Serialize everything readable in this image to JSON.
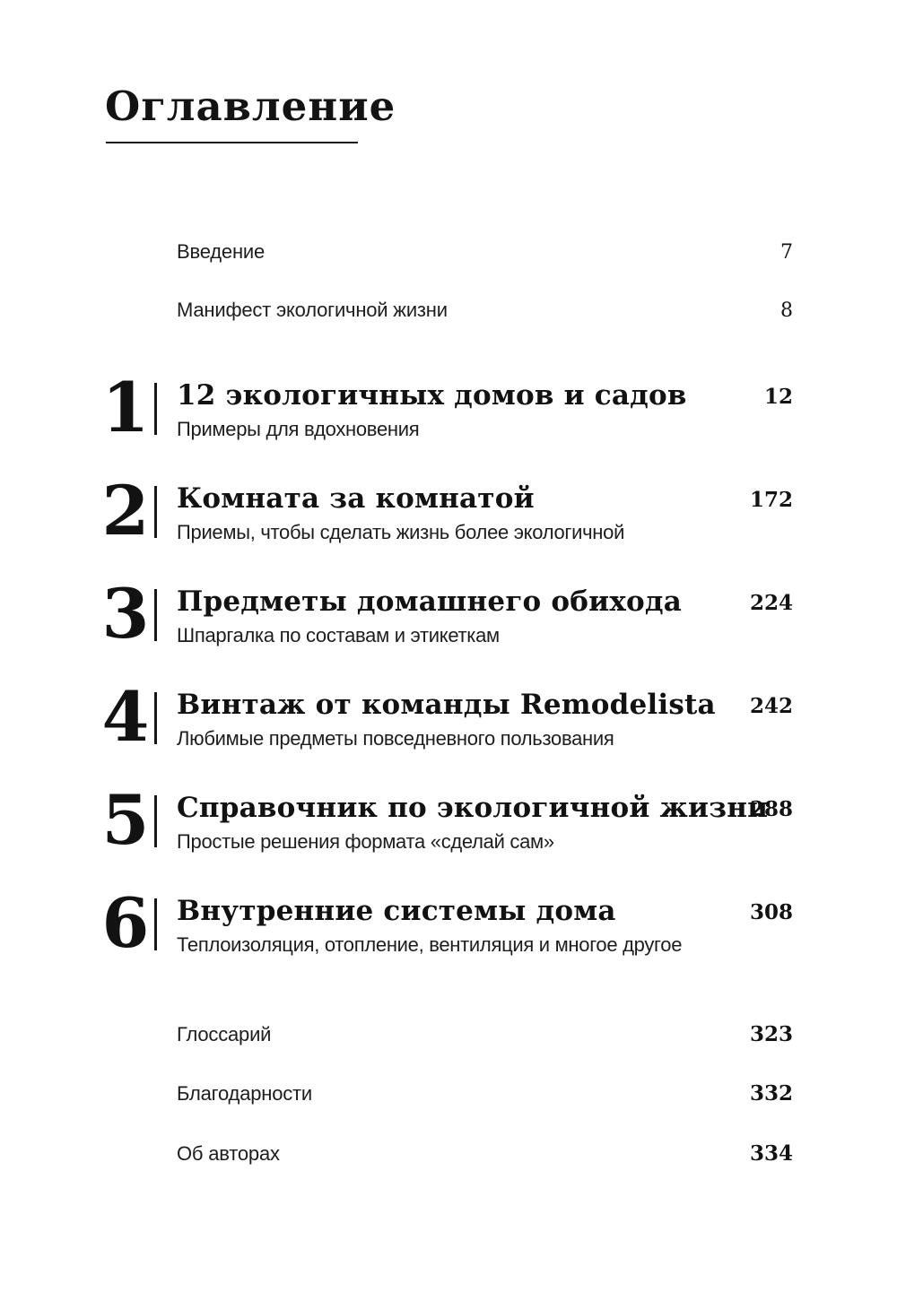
{
  "title": "Оглавление",
  "colors": {
    "text": "#161616",
    "background": "#ffffff"
  },
  "front_matter": [
    {
      "label": "Введение",
      "page": "7"
    },
    {
      "label": "Манифест экологичной жизни",
      "page": "8"
    }
  ],
  "chapters": [
    {
      "number": "1",
      "title": "12 экологичных домов и садов",
      "subtitle": "Примеры для вдохновения",
      "page": "12"
    },
    {
      "number": "2",
      "title": "Комната за комнатой",
      "subtitle": "Приемы, чтобы сделать жизнь более экологичной",
      "page": "172"
    },
    {
      "number": "3",
      "title": "Предметы домашнего обихода",
      "subtitle": "Шпаргалка по составам и этикеткам",
      "page": "224"
    },
    {
      "number": "4",
      "title": "Винтаж от команды Remodelista",
      "subtitle": "Любимые предметы повседневного пользования",
      "page": "242"
    },
    {
      "number": "5",
      "title": "Справочник по экологичной жизни",
      "subtitle": "Простые решения формата «сделай сам»",
      "page": "288"
    },
    {
      "number": "6",
      "title": "Внутренние системы дома",
      "subtitle": "Теплоизоляция, отопление, вентиляция и многое другое",
      "page": "308"
    }
  ],
  "back_matter": [
    {
      "label": "Глоссарий",
      "page": "323"
    },
    {
      "label": "Благодарности",
      "page": "332"
    },
    {
      "label": "Об авторах",
      "page": "334"
    }
  ]
}
